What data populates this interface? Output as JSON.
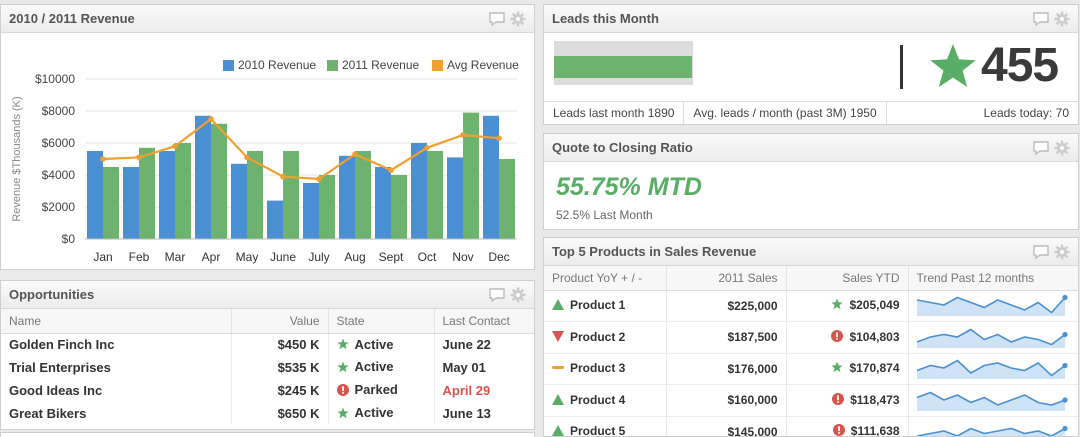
{
  "colors": {
    "series_2010": "#4a90d2",
    "series_2011": "#6db36f",
    "series_avg": "#f0a030",
    "positive": "#5aad66",
    "negative": "#d9534f",
    "neutral": "#f0a030"
  },
  "revenue_panel": {
    "title": "2010 / 2011 Revenue"
  },
  "chart_data": {
    "type": "bar",
    "title": "2010 / 2011 Revenue",
    "xlabel": "",
    "ylabel": "Revenue $Thousands (K)",
    "ylim": [
      0,
      10000
    ],
    "yticks": [
      "$0",
      "$2000",
      "$4000",
      "$6000",
      "$8000",
      "$10000"
    ],
    "ytick_values": [
      0,
      2000,
      4000,
      6000,
      8000,
      10000
    ],
    "legend": [
      "2010 Revenue",
      "2011 Revenue",
      "Avg Revenue"
    ],
    "legend_position": "top-right",
    "categories": [
      "Jan",
      "Feb",
      "Mar",
      "Apr",
      "May",
      "June",
      "July",
      "Aug",
      "Sept",
      "Oct",
      "Nov",
      "Dec"
    ],
    "series": [
      {
        "name": "2010 Revenue",
        "type": "bar",
        "values": [
          5500,
          4500,
          5500,
          7700,
          4700,
          2400,
          3500,
          5200,
          4500,
          6000,
          5100,
          7700
        ]
      },
      {
        "name": "2011 Revenue",
        "type": "bar",
        "values": [
          4500,
          5700,
          6000,
          7200,
          5500,
          5500,
          4000,
          5500,
          4000,
          5500,
          7900,
          5000
        ]
      },
      {
        "name": "Avg Revenue",
        "type": "line",
        "values": [
          5000,
          5100,
          5800,
          7500,
          5100,
          3900,
          3750,
          5300,
          4300,
          5700,
          6500,
          6300
        ]
      }
    ],
    "grid": true
  },
  "leads_panel": {
    "title": "Leads this Month",
    "current": 455,
    "count_label": "455",
    "last_month_value": 1890,
    "bar_max": 1890,
    "last_month_label": "Leads last month 1890",
    "avg_label": "Avg. leads / month (past 3M) 1950",
    "today_label": "Leads today: 70"
  },
  "quote_panel": {
    "title": "Quote to Closing Ratio",
    "value": "55.75% MTD",
    "last_month": "52.5% Last Month"
  },
  "products_panel": {
    "title": "Top 5 Products in Sales Revenue",
    "columns": [
      "Product YoY + / -",
      "2011 Sales",
      "Sales YTD",
      "Trend Past 12 months"
    ],
    "rows": [
      {
        "trend": "up",
        "name": "Product 1",
        "sales_2011": "$225,000",
        "ytd_status": "good",
        "ytd": "$205,049",
        "spark": [
          7,
          6,
          5,
          8,
          6,
          4,
          7,
          5,
          3,
          6,
          2,
          8
        ]
      },
      {
        "trend": "down",
        "name": "Product 2",
        "sales_2011": "$187,500",
        "ytd_status": "bad",
        "ytd": "$104,803",
        "spark": [
          3,
          5,
          6,
          5,
          8,
          4,
          6,
          3,
          5,
          4,
          2,
          6
        ]
      },
      {
        "trend": "flat",
        "name": "Product 3",
        "sales_2011": "$176,000",
        "ytd_status": "good",
        "ytd": "$170,874",
        "spark": [
          4,
          6,
          5,
          8,
          3,
          6,
          7,
          5,
          4,
          7,
          2,
          6
        ]
      },
      {
        "trend": "up",
        "name": "Product 4",
        "sales_2011": "$160,000",
        "ytd_status": "bad",
        "ytd": "$118,473",
        "spark": [
          6,
          8,
          5,
          7,
          4,
          6,
          3,
          5,
          7,
          4,
          3,
          5
        ]
      },
      {
        "trend": "up",
        "name": "Product 5",
        "sales_2011": "$145,000",
        "ytd_status": "bad",
        "ytd": "$111,638",
        "spark": [
          3,
          4,
          5,
          3,
          6,
          4,
          5,
          6,
          4,
          5,
          3,
          6
        ]
      }
    ]
  },
  "opportunities_panel": {
    "title": "Opportunities",
    "columns": [
      "Name",
      "Value",
      "State",
      "Last Contact"
    ],
    "rows": [
      {
        "name": "Golden Finch Inc",
        "value": "$450 K",
        "state_icon": "star",
        "state": "Active",
        "last_contact": "June 22",
        "overdue": false
      },
      {
        "name": "Trial Enterprises",
        "value": "$535 K",
        "state_icon": "star",
        "state": "Active",
        "last_contact": "May 01",
        "overdue": false
      },
      {
        "name": "Good Ideas Inc",
        "value": "$245 K",
        "state_icon": "alert",
        "state": "Parked",
        "last_contact": "April 29",
        "overdue": true
      },
      {
        "name": "Great Bikers",
        "value": "$650 K",
        "state_icon": "star",
        "state": "Active",
        "last_contact": "June 13",
        "overdue": false
      }
    ]
  }
}
